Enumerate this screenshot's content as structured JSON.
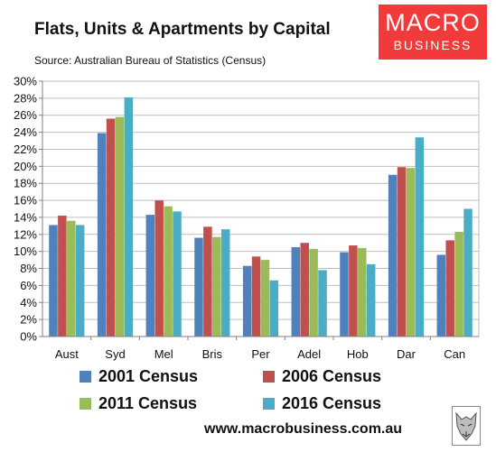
{
  "header": {
    "title": "Flats, Units & Apartments by Capital",
    "subtitle": "Source: Australian Bureau of Statistics (Census)"
  },
  "logo": {
    "line1": "MACRO",
    "line2": "BUSINESS",
    "color": "#f23a3a"
  },
  "footer": {
    "url": "www.macrobusiness.com.au"
  },
  "chart_data": {
    "type": "bar",
    "title": "Flats, Units & Apartments by Capital",
    "subtitle": "Source: Australian Bureau of Statistics (Census)",
    "categories": [
      "Aust",
      "Syd",
      "Mel",
      "Bris",
      "Per",
      "Adel",
      "Hob",
      "Dar",
      "Can"
    ],
    "series": [
      {
        "name": "2001 Census",
        "color": "#4f81bd",
        "values": [
          13.1,
          23.9,
          14.3,
          11.6,
          8.3,
          10.5,
          9.9,
          19.0,
          9.6
        ]
      },
      {
        "name": "2006 Census",
        "color": "#c0504d",
        "values": [
          14.2,
          25.6,
          16.0,
          12.9,
          9.4,
          11.0,
          10.7,
          19.9,
          11.3
        ]
      },
      {
        "name": "2011 Census",
        "color": "#9bbb59",
        "values": [
          13.6,
          25.8,
          15.3,
          11.7,
          9.0,
          10.3,
          10.4,
          19.8,
          12.3
        ]
      },
      {
        "name": "2016 Census",
        "color": "#4bacc6",
        "values": [
          13.1,
          28.1,
          14.7,
          12.6,
          6.6,
          7.8,
          8.5,
          23.4,
          15.0
        ]
      }
    ],
    "yticks": [
      "0%",
      "2%",
      "4%",
      "6%",
      "8%",
      "10%",
      "12%",
      "14%",
      "16%",
      "18%",
      "20%",
      "22%",
      "24%",
      "26%",
      "28%",
      "30%"
    ],
    "ylim": [
      0,
      30
    ],
    "grid": true,
    "legend_position": "bottom"
  }
}
